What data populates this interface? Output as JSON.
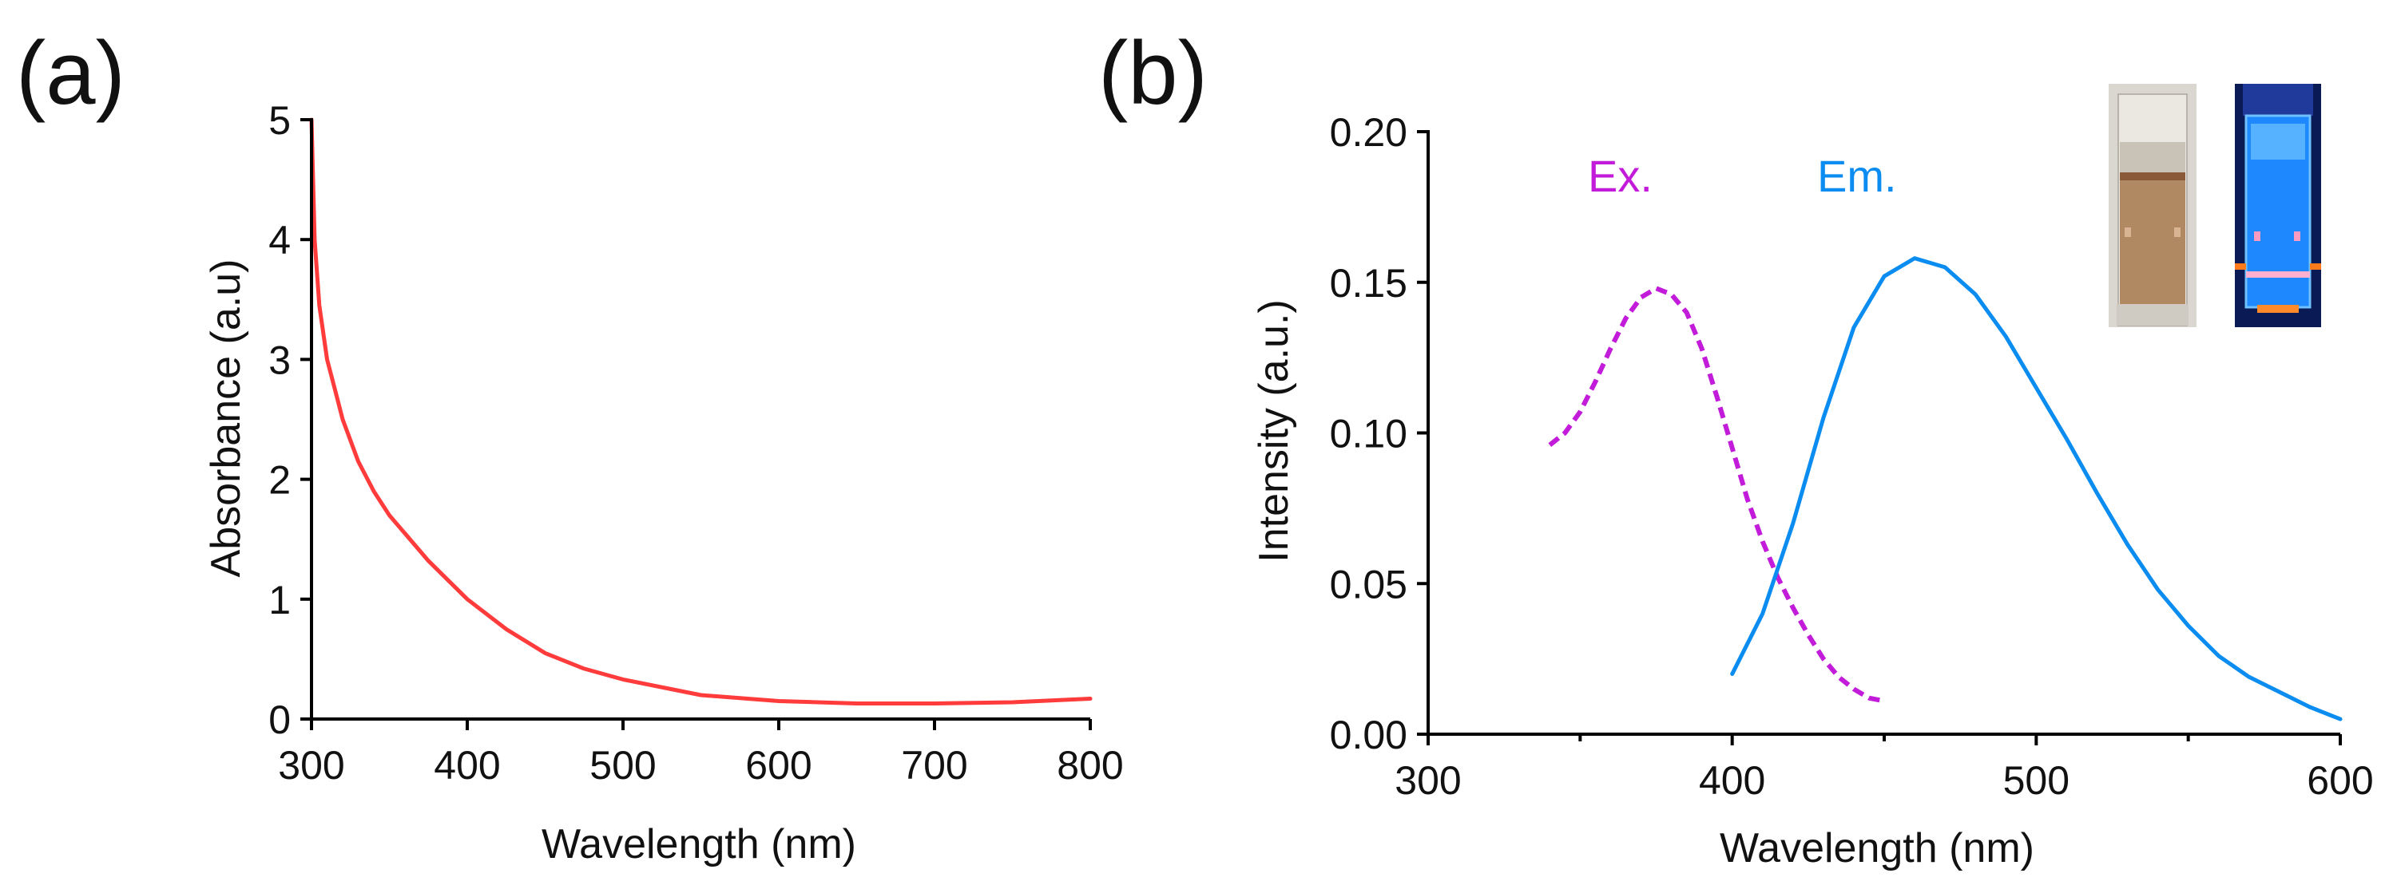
{
  "colors": {
    "absorbance": "#ff3b3b",
    "excitation": "#c21bd9",
    "emission": "#0a8cf0",
    "axis": "#000000"
  },
  "chart_data": [
    {
      "panel": "(a)",
      "type": "line",
      "title": "",
      "xlabel": "Wavelength (nm)",
      "ylabel": "Absorbance (a.u)",
      "xlim": [
        300,
        800
      ],
      "ylim": [
        0,
        5
      ],
      "xticks": [
        "300",
        "400",
        "500",
        "600",
        "700",
        "800"
      ],
      "yticks": [
        "0",
        "1",
        "2",
        "3",
        "4",
        "5"
      ],
      "series": [
        {
          "name": "Absorbance",
          "color": "#ff3b3b",
          "style": "solid",
          "x": [
            300,
            302,
            305,
            310,
            315,
            320,
            330,
            340,
            350,
            375,
            400,
            425,
            450,
            475,
            500,
            550,
            600,
            650,
            700,
            750,
            800
          ],
          "y": [
            5.0,
            4.0,
            3.45,
            3.0,
            2.75,
            2.5,
            2.15,
            1.9,
            1.7,
            1.32,
            1.0,
            0.75,
            0.55,
            0.42,
            0.33,
            0.2,
            0.15,
            0.13,
            0.13,
            0.14,
            0.17
          ]
        }
      ]
    },
    {
      "panel": "(b)",
      "type": "line",
      "title": "",
      "xlabel": "Wavelength (nm)",
      "ylabel": "Intensity (a.u.)",
      "xlim": [
        300,
        600
      ],
      "ylim": [
        0,
        0.2
      ],
      "xticks": [
        "300",
        "400",
        "500",
        "600"
      ],
      "yticks": [
        "0.00",
        "0.05",
        "0.10",
        "0.15",
        "0.20"
      ],
      "legend": [
        "Ex.",
        "Em."
      ],
      "series": [
        {
          "name": "Ex.",
          "color": "#c21bd9",
          "style": "dashed",
          "x": [
            340,
            345,
            350,
            355,
            360,
            365,
            370,
            375,
            380,
            385,
            390,
            395,
            400,
            405,
            410,
            415,
            420,
            425,
            430,
            435,
            440,
            445,
            450
          ],
          "y": [
            0.096,
            0.1,
            0.107,
            0.117,
            0.128,
            0.138,
            0.145,
            0.148,
            0.146,
            0.14,
            0.128,
            0.112,
            0.095,
            0.078,
            0.064,
            0.052,
            0.042,
            0.033,
            0.025,
            0.019,
            0.015,
            0.012,
            0.011
          ]
        },
        {
          "name": "Em.",
          "color": "#0a8cf0",
          "style": "solid",
          "x": [
            400,
            410,
            420,
            430,
            440,
            450,
            460,
            470,
            480,
            490,
            500,
            510,
            520,
            530,
            540,
            550,
            560,
            570,
            580,
            590,
            600
          ],
          "y": [
            0.02,
            0.04,
            0.07,
            0.105,
            0.135,
            0.152,
            0.158,
            0.155,
            0.146,
            0.132,
            0.115,
            0.098,
            0.08,
            0.063,
            0.048,
            0.036,
            0.026,
            0.019,
            0.014,
            0.009,
            0.005
          ]
        }
      ]
    }
  ]
}
